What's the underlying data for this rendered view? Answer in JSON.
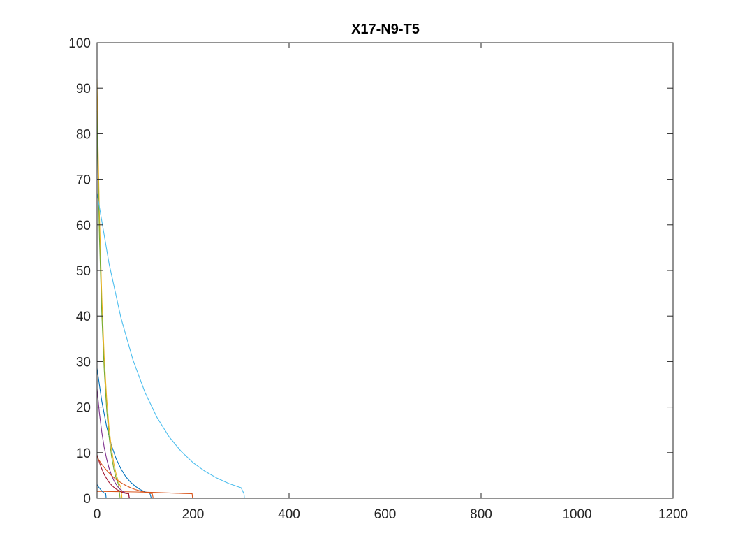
{
  "chart_data": {
    "type": "line",
    "title": "X17-N9-T5",
    "xlabel": "",
    "ylabel": "",
    "xlim": [
      0,
      1200
    ],
    "ylim": [
      0,
      100
    ],
    "xticks": [
      0,
      200,
      400,
      600,
      800,
      1000,
      1200
    ],
    "yticks": [
      0,
      10,
      20,
      30,
      40,
      50,
      60,
      70,
      80,
      90,
      100
    ],
    "grid": false,
    "legend": "none",
    "series": [
      {
        "color": "#0072BD",
        "x": [
          0,
          10,
          20,
          30,
          40,
          50,
          60,
          70,
          80,
          90,
          100,
          110,
          113
        ],
        "y": [
          28.5,
          21.2,
          15.7,
          11.6,
          8.6,
          6.4,
          4.7,
          3.5,
          2.6,
          1.9,
          1.4,
          1.1,
          0
        ]
      },
      {
        "color": "#D95319",
        "x": [
          0,
          20,
          40,
          60,
          80,
          100,
          120,
          140,
          160,
          180,
          198,
          199
        ],
        "y": [
          1.5,
          1.48,
          1.45,
          1.42,
          1.38,
          1.33,
          1.27,
          1.2,
          1.12,
          1.05,
          1.0,
          0
        ]
      },
      {
        "color": "#EDB120",
        "x": [
          0,
          2,
          5,
          10,
          15,
          20,
          25,
          30,
          35,
          40,
          45,
          50,
          52
        ],
        "y": [
          92,
          78,
          62,
          44,
          31,
          22,
          15.5,
          10.9,
          7.6,
          5.2,
          3.5,
          2.3,
          0
        ]
      },
      {
        "color": "#7E2F8E",
        "x": [
          0,
          5,
          10,
          15,
          20,
          25,
          30,
          35,
          40,
          45,
          50,
          55,
          60,
          65,
          68
        ],
        "y": [
          24,
          18.6,
          14.4,
          11.1,
          8.6,
          6.6,
          5.1,
          3.9,
          3.0,
          2.3,
          1.8,
          1.4,
          1.1,
          1.0,
          0
        ]
      },
      {
        "color": "#77AC30",
        "x": [
          0,
          2,
          5,
          10,
          15,
          20,
          25,
          30,
          35,
          40,
          45,
          48
        ],
        "y": [
          85,
          72,
          57,
          40,
          28,
          19.5,
          13.5,
          9.3,
          6.4,
          4.3,
          2.9,
          0
        ]
      },
      {
        "color": "#4DBEEE",
        "x": [
          0,
          25,
          50,
          75,
          100,
          125,
          150,
          175,
          200,
          225,
          250,
          275,
          300,
          306,
          307
        ],
        "y": [
          67,
          51.5,
          39.5,
          30.3,
          23.2,
          17.7,
          13.5,
          10.3,
          7.8,
          5.9,
          4.4,
          3.2,
          2.3,
          1.0,
          0
        ]
      },
      {
        "color": "#A2142F",
        "x": [
          0,
          5,
          10,
          15,
          20,
          25,
          30,
          35,
          40,
          45,
          50,
          55,
          60,
          66,
          67
        ],
        "y": [
          9.5,
          7.8,
          6.4,
          5.2,
          4.3,
          3.5,
          2.9,
          2.4,
          2.0,
          1.7,
          1.4,
          1.2,
          1.05,
          1.0,
          0
        ]
      },
      {
        "color": "#0072BD",
        "x": [
          0,
          3,
          6,
          9,
          12,
          15,
          18,
          19
        ],
        "y": [
          3.0,
          2.5,
          2.1,
          1.7,
          1.4,
          1.15,
          1.0,
          0
        ]
      },
      {
        "color": "#D95319",
        "x": [
          0,
          10,
          20,
          30,
          40,
          50,
          60,
          70,
          80,
          90,
          100,
          110,
          115,
          117
        ],
        "y": [
          9.0,
          7.4,
          6.1,
          5.0,
          4.1,
          3.4,
          2.8,
          2.3,
          1.9,
          1.6,
          1.3,
          1.1,
          1.0,
          0
        ]
      },
      {
        "color": "#0072BD",
        "x": [
          0,
          1000,
          1100
        ],
        "y": [
          0,
          0,
          0
        ]
      },
      {
        "color": "#D95319",
        "x": [
          0,
          1000
        ],
        "y": [
          0,
          0
        ]
      }
    ]
  }
}
